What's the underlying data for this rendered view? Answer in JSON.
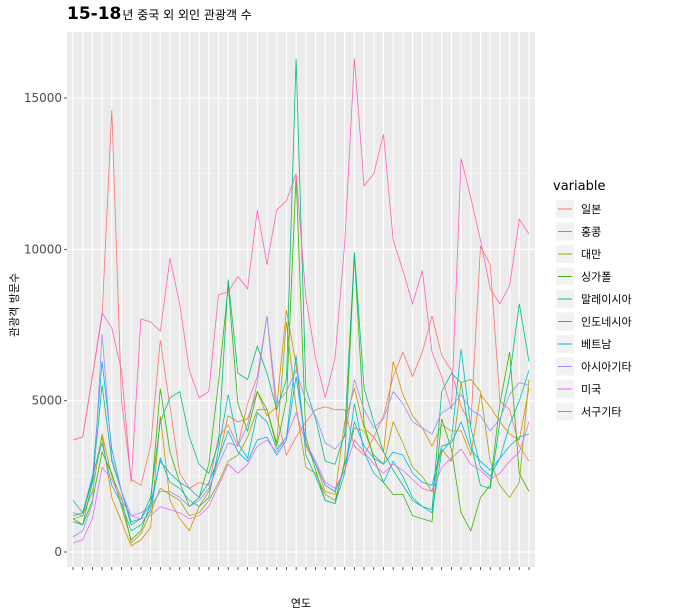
{
  "title_bold": "15-18",
  "title_rest": "년 중국 외 외인 관광객 수",
  "chart_data": {
    "type": "line",
    "xlabel": "연도",
    "ylabel": "관광객 방문수",
    "ylim": [
      0,
      17000
    ],
    "y_ticks": [
      0,
      5000,
      10000,
      15000
    ],
    "y_tick_labels": [
      "0",
      "5000",
      "10000",
      "15000"
    ],
    "x_count": 48,
    "x_tick_labels_note": "overlapping month labels (2015-2018 monthly); unreadable",
    "legend_title": "variable",
    "legend_position": "right",
    "grid": true,
    "series": [
      {
        "name": "일본",
        "color": "#F8766D",
        "values": [
          3700,
          3800,
          5800,
          7800,
          14600,
          5000,
          2400,
          2200,
          3500,
          7000,
          4800,
          2600,
          2100,
          2300,
          2200,
          3800,
          4200,
          3500,
          4900,
          5800,
          7800,
          4500,
          3200,
          3800,
          4300,
          4700,
          4800,
          4700,
          4700,
          3500,
          3200,
          3800,
          4500,
          5800,
          6600,
          5800,
          6600,
          7800,
          6500,
          6000,
          4800,
          4200,
          10100,
          9500,
          5000,
          4700,
          3500,
          3000
        ]
      },
      {
        "name": "홍콩",
        "color": "#D89000",
        "values": [
          1300,
          1200,
          2400,
          3800,
          1800,
          1000,
          200,
          400,
          800,
          4500,
          1700,
          1100,
          700,
          1500,
          2000,
          3100,
          4500,
          4300,
          4400,
          5300,
          4500,
          4800,
          8000,
          6200,
          3500,
          2900,
          2000,
          1900,
          4300,
          5400,
          4100,
          3800,
          3300,
          6300,
          5200,
          4500,
          4100,
          3500,
          4200,
          4000,
          4000,
          3200,
          5200,
          4800,
          4300,
          3900,
          3700,
          5400
        ]
      },
      {
        "name": "대만",
        "color": "#A3A500",
        "values": [
          1100,
          1200,
          2000,
          3900,
          2500,
          1800,
          300,
          600,
          1300,
          2100,
          1900,
          1700,
          1200,
          1300,
          1700,
          2300,
          3000,
          3200,
          3800,
          4700,
          4700,
          3600,
          7600,
          4800,
          2800,
          2600,
          1900,
          1700,
          2900,
          4100,
          4000,
          3200,
          2900,
          4300,
          3600,
          2800,
          2500,
          2000,
          3400,
          3000,
          5600,
          5700,
          5300,
          3000,
          2200,
          1800,
          2300,
          5700
        ]
      },
      {
        "name": "싱가폴",
        "color": "#39B600",
        "values": [
          1000,
          900,
          1700,
          3300,
          2600,
          1500,
          400,
          700,
          1600,
          5400,
          3300,
          2300,
          1500,
          1800,
          2900,
          5600,
          8800,
          4900,
          4000,
          5300,
          4700,
          3500,
          5000,
          12400,
          3800,
          2700,
          1700,
          1600,
          3000,
          9800,
          4200,
          3100,
          2300,
          1900,
          1900,
          1200,
          1100,
          1000,
          4400,
          3400,
          1300,
          700,
          1800,
          2200,
          4900,
          6600,
          2600,
          2000
        ]
      },
      {
        "name": "말레이시아",
        "color": "#00BF7D",
        "values": [
          1100,
          900,
          2300,
          5500,
          3000,
          2000,
          900,
          1100,
          1800,
          4300,
          5100,
          5300,
          3800,
          2900,
          2600,
          3600,
          9000,
          5900,
          5700,
          6800,
          5900,
          4700,
          5700,
          16300,
          5400,
          4400,
          3000,
          2900,
          3900,
          9900,
          5400,
          4300,
          3300,
          2700,
          2200,
          1700,
          1500,
          1400,
          5300,
          5900,
          5600,
          3600,
          2200,
          2100,
          4300,
          5800,
          8200,
          6300
        ]
      },
      {
        "name": "인도네시아",
        "color": "#00BFC4",
        "values": [
          1700,
          1300,
          2500,
          3600,
          2200,
          1600,
          700,
          900,
          1400,
          3100,
          2300,
          2100,
          1700,
          1500,
          1800,
          3400,
          5200,
          3600,
          3100,
          4600,
          4300,
          3400,
          3800,
          6500,
          3200,
          2500,
          1700,
          1600,
          2600,
          4900,
          3300,
          2600,
          2300,
          3000,
          2500,
          1800,
          1500,
          1300,
          3300,
          3700,
          6700,
          4100,
          2800,
          2500,
          3100,
          4200,
          5000,
          6000
        ]
      },
      {
        "name": "베트남",
        "color": "#00B0F6",
        "values": [
          1200,
          1300,
          2400,
          6300,
          3400,
          2000,
          1000,
          1100,
          1600,
          3000,
          2600,
          2300,
          2100,
          1800,
          2300,
          3100,
          4000,
          3300,
          3000,
          3700,
          3800,
          3200,
          3700,
          5800,
          3600,
          2900,
          2200,
          2000,
          2700,
          4300,
          3500,
          3100,
          2900,
          3300,
          3200,
          2600,
          2300,
          2200,
          3500,
          3600,
          4300,
          3400,
          3000,
          2700,
          3100,
          3500,
          3800,
          3900
        ]
      },
      {
        "name": "아시아기타",
        "color": "#9590FF",
        "values": [
          500,
          700,
          1600,
          7200,
          3100,
          2000,
          1200,
          1300,
          1500,
          2000,
          2000,
          1800,
          1500,
          1700,
          2100,
          2900,
          3600,
          3500,
          4200,
          5600,
          7800,
          4900,
          5300,
          6000,
          5000,
          4500,
          3600,
          3400,
          3800,
          5700,
          4700,
          4100,
          4400,
          5300,
          4900,
          4300,
          4100,
          3900,
          4600,
          4800,
          5200,
          4700,
          4500,
          4000,
          4400,
          5200,
          5600,
          5500
        ]
      },
      {
        "name": "미국",
        "color": "#E76BF3",
        "values": [
          300,
          400,
          1100,
          2800,
          2400,
          1700,
          1200,
          1100,
          1200,
          1500,
          1400,
          1300,
          1100,
          1200,
          1500,
          2200,
          2900,
          2600,
          2900,
          3500,
          3700,
          3300,
          3800,
          4600,
          3600,
          3000,
          2300,
          2100,
          2700,
          3700,
          3300,
          2900,
          2600,
          2900,
          2700,
          2400,
          2100,
          2000,
          2800,
          3100,
          3400,
          2900,
          2700,
          2400,
          2600,
          3000,
          3300,
          4300
        ]
      },
      {
        "name": "서구기타",
        "color": "#FF62BC",
        "values": [
          3700,
          3800,
          5800,
          7900,
          7400,
          6000,
          2300,
          7700,
          7600,
          7300,
          9700,
          8200,
          6000,
          5100,
          5300,
          8500,
          8600,
          9100,
          8700,
          11300,
          9500,
          11300,
          11600,
          12500,
          8400,
          6400,
          5100,
          6400,
          10200,
          16300,
          12100,
          12500,
          13800,
          10300,
          9300,
          8200,
          9300,
          6600,
          5800,
          4700,
          13000,
          11700,
          10300,
          8700,
          8200,
          8800,
          11000,
          10500
        ]
      }
    ]
  }
}
